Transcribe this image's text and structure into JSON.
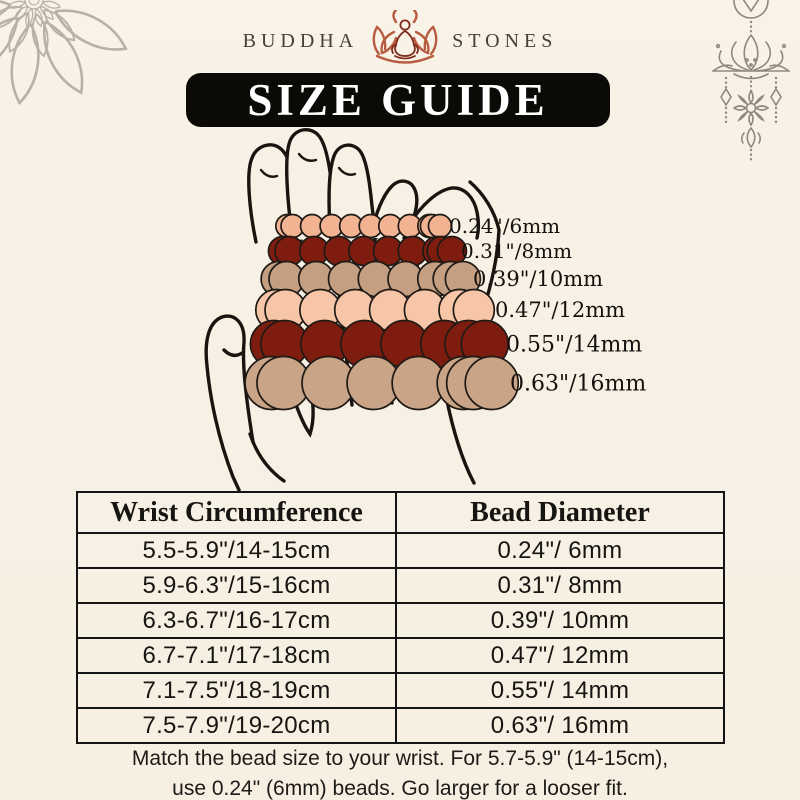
{
  "page": {
    "background": "#f7f1e5"
  },
  "brand": {
    "name_left": "BUDDHA",
    "name_right": "STONES",
    "icon": "lotus-meditation-icon",
    "icon_color": "#9c4a2f"
  },
  "banner": {
    "title": "SIZE GUIDE",
    "bg": "#0c0a07",
    "text_color": "#ffffff"
  },
  "decorations": {
    "top_left": "mandala-flower-outline",
    "top_right": "hanging-lotus-ornament",
    "line_color": "#8d897f"
  },
  "bracelet_diagram": {
    "illustration": "hand-with-bead-strands",
    "rows": [
      {
        "label": "0.24\"/6mm",
        "bead_color": "#f2b392"
      },
      {
        "label": "0.31\"/8mm",
        "bead_color": "#7e1d0f"
      },
      {
        "label": "0.39\"/10mm",
        "bead_color": "#c49f81"
      },
      {
        "label": "0.47\"/12mm",
        "bead_color": "#f7c5a8"
      },
      {
        "label": "0.55\"/14mm",
        "bead_color": "#7e1d0f"
      },
      {
        "label": "0.63\"/16mm",
        "bead_color": "#c9a486"
      }
    ]
  },
  "size_table": {
    "headers": [
      "Wrist Circumference",
      "Bead Diameter"
    ],
    "rows": [
      [
        "5.5-5.9\"/14-15cm",
        "0.24\"/ 6mm"
      ],
      [
        "5.9-6.3\"/15-16cm",
        "0.31\"/ 8mm"
      ],
      [
        "6.3-6.7\"/16-17cm",
        "0.39\"/ 10mm"
      ],
      [
        "6.7-7.1\"/17-18cm",
        "0.47\"/ 12mm"
      ],
      [
        "7.1-7.5\"/18-19cm",
        "0.55\"/ 14mm"
      ],
      [
        "7.5-7.9\"/19-20cm",
        "0.63\"/ 16mm"
      ]
    ]
  },
  "footnote": {
    "line1": "Match the bead size to your wrist. For 5.7-5.9\" (14-15cm),",
    "line2": "use 0.24\" (6mm) beads. Go larger for a looser fit."
  }
}
